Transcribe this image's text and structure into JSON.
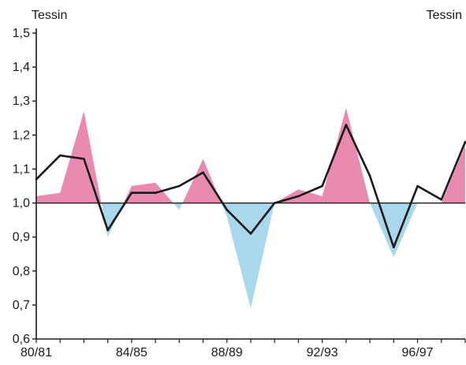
{
  "chart_data": {
    "type": "area",
    "label_left": "Tessin",
    "label_right": "Tessin",
    "baseline": 1.0,
    "ylim": [
      0.6,
      1.5
    ],
    "yticks": [
      "0,6",
      "0,7",
      "0,8",
      "0,9",
      "1,0",
      "1,1",
      "1,2",
      "1,3",
      "1,4",
      "1,5"
    ],
    "ytick_values": [
      0.6,
      0.7,
      0.8,
      0.9,
      1.0,
      1.1,
      1.2,
      1.3,
      1.4,
      1.5
    ],
    "xlabels": [
      "80/81",
      "84/85",
      "88/89",
      "92/93",
      "96/97"
    ],
    "xlabel_indices": [
      0,
      4,
      8,
      12,
      16
    ],
    "x_count": 19,
    "series": [
      {
        "role": "line",
        "values": [
          1.07,
          1.14,
          1.13,
          0.92,
          1.03,
          1.03,
          1.05,
          1.09,
          0.98,
          0.91,
          1.0,
          1.02,
          1.05,
          1.23,
          1.08,
          0.87,
          1.05,
          1.01,
          1.18
        ]
      },
      {
        "role": "area",
        "values": [
          1.02,
          1.03,
          1.27,
          0.9,
          1.05,
          1.06,
          0.98,
          1.13,
          0.96,
          0.69,
          1.0,
          1.04,
          1.02,
          1.28,
          1.0,
          0.84,
          1.0,
          1.0,
          1.17
        ]
      }
    ],
    "colors": {
      "above": "#e98bb0",
      "below": "#a9d8ec",
      "line": "#1a1a1a",
      "axis": "#1a1a1a"
    }
  }
}
